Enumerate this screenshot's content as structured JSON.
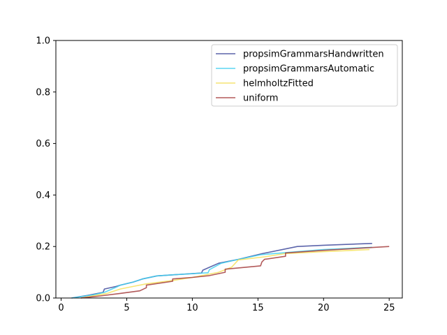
{
  "chart_data": {
    "type": "line",
    "title": "",
    "xlabel": "",
    "ylabel": "",
    "xlim": [
      -0.4,
      26.0
    ],
    "ylim": [
      0.0,
      1.0
    ],
    "xticks": [
      0,
      5,
      10,
      15,
      20,
      25
    ],
    "yticks": [
      0.0,
      0.2,
      0.4,
      0.6,
      0.8,
      1.0
    ],
    "xtick_labels": [
      "0",
      "5",
      "10",
      "15",
      "20",
      "25"
    ],
    "ytick_labels": [
      "0.0",
      "0.2",
      "0.4",
      "0.6",
      "0.8",
      "1.0"
    ],
    "grid": false,
    "legend_position": "top-right",
    "series": [
      {
        "name": "propsimGrammarsHandwritten",
        "color": "#3f4a9c",
        "points": [
          [
            0.8,
            0.0
          ],
          [
            2.0,
            0.01
          ],
          [
            3.2,
            0.022
          ],
          [
            3.3,
            0.035
          ],
          [
            4.2,
            0.045
          ],
          [
            4.5,
            0.05
          ],
          [
            5.5,
            0.062
          ],
          [
            6.2,
            0.074
          ],
          [
            7.3,
            0.086
          ],
          [
            8.5,
            0.09
          ],
          [
            10.7,
            0.097
          ],
          [
            10.8,
            0.108
          ],
          [
            12.0,
            0.135
          ],
          [
            13.5,
            0.15
          ],
          [
            15.3,
            0.172
          ],
          [
            18.0,
            0.2
          ],
          [
            20.0,
            0.205
          ],
          [
            23.7,
            0.212
          ]
        ]
      },
      {
        "name": "propsimGrammarsAutomatic",
        "color": "#3fd0f0",
        "points": [
          [
            0.8,
            0.0
          ],
          [
            2.5,
            0.013
          ],
          [
            3.3,
            0.022
          ],
          [
            4.2,
            0.042
          ],
          [
            4.5,
            0.05
          ],
          [
            5.5,
            0.062
          ],
          [
            6.2,
            0.074
          ],
          [
            7.3,
            0.086
          ],
          [
            8.5,
            0.09
          ],
          [
            10.5,
            0.096
          ],
          [
            11.2,
            0.098
          ],
          [
            11.3,
            0.11
          ],
          [
            12.2,
            0.135
          ],
          [
            13.5,
            0.15
          ],
          [
            15.2,
            0.168
          ],
          [
            18.0,
            0.18
          ],
          [
            20.0,
            0.188
          ],
          [
            23.7,
            0.197
          ]
        ]
      },
      {
        "name": "helmholtzFitted",
        "color": "#f5e05a",
        "points": [
          [
            1.5,
            0.0
          ],
          [
            3.5,
            0.018
          ],
          [
            4.5,
            0.035
          ],
          [
            5.5,
            0.045
          ],
          [
            6.5,
            0.055
          ],
          [
            8.5,
            0.068
          ],
          [
            10.0,
            0.08
          ],
          [
            12.0,
            0.1
          ],
          [
            13.0,
            0.12
          ],
          [
            13.5,
            0.148
          ],
          [
            15.5,
            0.16
          ],
          [
            17.0,
            0.172
          ],
          [
            20.0,
            0.18
          ],
          [
            23.5,
            0.188
          ]
        ]
      },
      {
        "name": "uniform",
        "color": "#a53d3d",
        "points": [
          [
            1.5,
            0.0
          ],
          [
            3.0,
            0.008
          ],
          [
            4.5,
            0.018
          ],
          [
            6.0,
            0.028
          ],
          [
            6.5,
            0.04
          ],
          [
            6.5,
            0.05
          ],
          [
            8.5,
            0.065
          ],
          [
            8.5,
            0.074
          ],
          [
            10.0,
            0.08
          ],
          [
            11.3,
            0.087
          ],
          [
            12.5,
            0.1
          ],
          [
            12.5,
            0.112
          ],
          [
            15.2,
            0.125
          ],
          [
            15.3,
            0.14
          ],
          [
            15.5,
            0.15
          ],
          [
            17.1,
            0.162
          ],
          [
            17.1,
            0.175
          ],
          [
            20.0,
            0.185
          ],
          [
            25.0,
            0.2
          ]
        ]
      }
    ]
  }
}
